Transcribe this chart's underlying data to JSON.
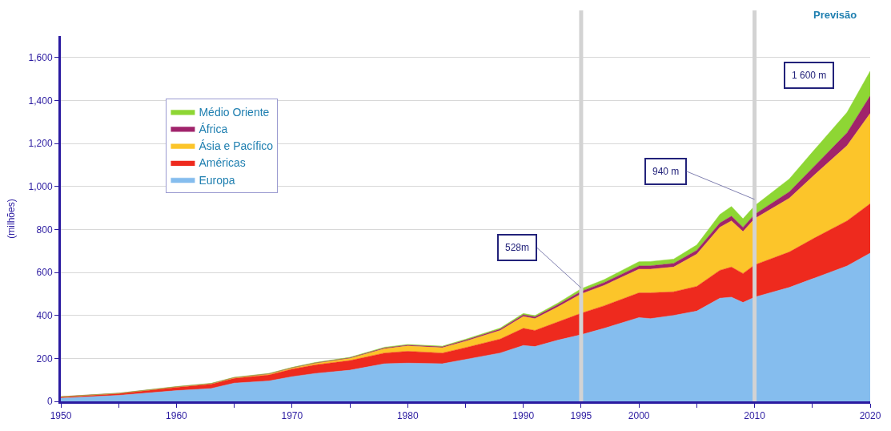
{
  "chart_data": {
    "type": "area",
    "stacked": true,
    "x": [
      1950,
      1955,
      1960,
      1963,
      1965,
      1968,
      1970,
      1972,
      1975,
      1978,
      1980,
      1983,
      1985,
      1988,
      1990,
      1991,
      1993,
      1995,
      1997,
      2000,
      2001,
      2003,
      2005,
      2007,
      2008,
      2009,
      2010,
      2013,
      2015,
      2018,
      2020
    ],
    "series": [
      {
        "name": "Europa",
        "color": "#85bdee",
        "values": [
          15,
          28,
          50,
          60,
          85,
          95,
          115,
          130,
          145,
          175,
          178,
          175,
          195,
          225,
          260,
          255,
          285,
          310,
          340,
          390,
          385,
          400,
          420,
          480,
          485,
          460,
          485,
          530,
          570,
          630,
          690
        ]
      },
      {
        "name": "Américas",
        "color": "#ee2a1e",
        "values": [
          5,
          8,
          15,
          20,
          22,
          28,
          35,
          40,
          45,
          50,
          55,
          50,
          55,
          65,
          80,
          75,
          85,
          100,
          105,
          115,
          120,
          110,
          115,
          130,
          140,
          135,
          150,
          165,
          185,
          210,
          230
        ]
      },
      {
        "name": "Ásia e Pacífico",
        "color": "#fcc52a",
        "values": [
          1,
          1,
          2,
          2,
          3,
          4,
          5,
          7,
          10,
          20,
          25,
          25,
          30,
          40,
          55,
          55,
          70,
          90,
          95,
          110,
          110,
          115,
          150,
          200,
          215,
          195,
          215,
          250,
          290,
          350,
          420
        ]
      },
      {
        "name": "África",
        "color": "#a0236b",
        "values": [
          1,
          1,
          1,
          1,
          1,
          2,
          2,
          2,
          3,
          4,
          4,
          4,
          5,
          6,
          8,
          8,
          10,
          12,
          13,
          15,
          16,
          17,
          18,
          20,
          22,
          20,
          20,
          30,
          40,
          60,
          82
        ]
      },
      {
        "name": "Médio Oriente",
        "color": "#8ed634",
        "values": [
          0,
          0,
          1,
          1,
          1,
          1,
          1,
          2,
          2,
          3,
          3,
          3,
          4,
          5,
          6,
          6,
          8,
          12,
          14,
          20,
          20,
          20,
          25,
          40,
          45,
          40,
          40,
          60,
          75,
          95,
          115
        ]
      }
    ],
    "ylabel": "(milhões)",
    "xlim": [
      1950,
      2020
    ],
    "xticks": [
      1950,
      {
        "value": 1955,
        "label": null
      },
      1960,
      {
        "value": 1965,
        "label": null
      },
      1970,
      {
        "value": 1975,
        "label": null
      },
      1980,
      {
        "value": 1985,
        "label": null
      },
      1990,
      1995,
      2000,
      {
        "value": 2005,
        "label": null
      },
      2010,
      {
        "value": 2015,
        "label": null
      },
      2020
    ],
    "ylim": [
      0,
      1700
    ],
    "yticks": [
      0,
      200,
      400,
      600,
      800,
      {
        "value": 1000,
        "label": "1,000"
      },
      {
        "value": 1200,
        "label": "1,200"
      },
      {
        "value": 1400,
        "label": "1,400"
      },
      {
        "value": 1600,
        "label": "1,600"
      }
    ],
    "grid": "y",
    "legend": "left",
    "ref_lines": [
      {
        "axis": "x",
        "value": 1995,
        "color": "#d3d3d3"
      },
      {
        "axis": "x",
        "value": 2010,
        "color": "#d3d3d3"
      }
    ],
    "annotations": [
      "Previsão",
      {
        "text": "528m",
        "x": 1995,
        "y": 528
      },
      {
        "text": "940 m",
        "x": 2010,
        "y": 940
      },
      "1 600 m"
    ]
  }
}
